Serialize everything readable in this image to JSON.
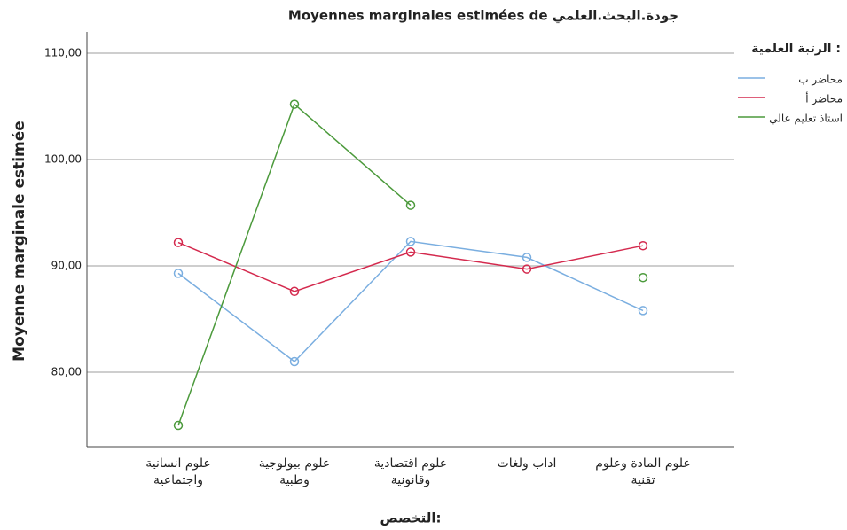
{
  "chart_data": {
    "type": "line",
    "title": "Moyennes marginales estimées de جودة.البحث.العلمي",
    "y_label": "Moyenne marginale estimée",
    "x_label": "التخصص:",
    "legend_title": "الرتبة العلمية :",
    "categories": [
      "علوم انسانية\nواجتماعية",
      "علوم بيولوجية\nوطبية",
      "علوم اقتصادية\nوقانونية",
      "اداب ولغات",
      "علوم المادة وعلوم\nتقنية"
    ],
    "series": [
      {
        "name": "محاضر ب",
        "color": "#7aaee0",
        "values": [
          89.3,
          81.0,
          92.3,
          90.8,
          85.8
        ]
      },
      {
        "name": "محاضر أ",
        "color": "#d42a4e",
        "values": [
          92.2,
          87.6,
          91.3,
          89.7,
          91.9
        ]
      },
      {
        "name": "استاذ تعليم عالي",
        "color": "#4c9a3c",
        "values": [
          75.0,
          105.2,
          95.7,
          null,
          88.9
        ]
      }
    ],
    "ylim": [
      73,
      112
    ],
    "yticks": [
      {
        "value": 80,
        "label": "80,00"
      },
      {
        "value": 90,
        "label": "90,00"
      },
      {
        "value": 100,
        "label": "100,00"
      },
      {
        "value": 110,
        "label": "110,00"
      }
    ],
    "grid": true,
    "legend_position": "right"
  }
}
